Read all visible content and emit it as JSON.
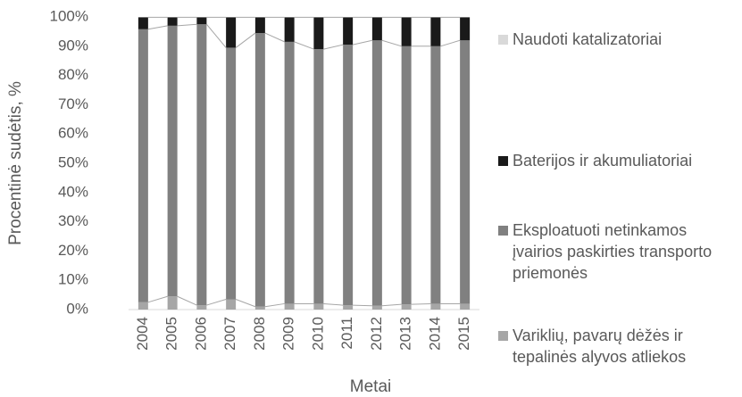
{
  "chart_data": {
    "type": "stacked_bar_100",
    "ylabel": "Procentinė sudėtis, %",
    "xlabel": "Metai",
    "categories": [
      "2004",
      "2005",
      "2006",
      "2007",
      "2008",
      "2009",
      "2010",
      "2011",
      "2012",
      "2013",
      "2014",
      "2015"
    ],
    "series": [
      {
        "name": "Variklių, pavarų dėžės ir tepalinės alyvos atliekos",
        "color": "#a6a6a6",
        "values": [
          2.5,
          4.5,
          1.5,
          3.5,
          1,
          2,
          2,
          1.5,
          1.3,
          1.8,
          2,
          2
        ]
      },
      {
        "name": "Eksploatuoti netinkamos įvairios paskirties transporto priemonės",
        "color": "#808080",
        "values": [
          93.3,
          92.5,
          96,
          86,
          93.5,
          89.5,
          87,
          89,
          90.7,
          88.2,
          88,
          90
        ]
      },
      {
        "name": "Baterijos ir akumuliatoriai",
        "color": "#1a1a1a",
        "values": [
          4.1,
          2.9,
          2.4,
          10.4,
          5.4,
          8.4,
          10.9,
          9.4,
          7.9,
          9.9,
          9.9,
          7.9
        ]
      },
      {
        "name": "Naudoti katalizatoriai",
        "color": "#d9d9d9",
        "values": [
          0.1,
          0.1,
          0.1,
          0.1,
          0.1,
          0.1,
          0.1,
          0.1,
          0.1,
          0.1,
          0.1,
          0.1
        ]
      }
    ],
    "ylim": [
      0,
      100
    ],
    "yticks": [
      {
        "value": 0,
        "label": "0%"
      },
      {
        "value": 10,
        "label": "10%"
      },
      {
        "value": 20,
        "label": "20%"
      },
      {
        "value": 30,
        "label": "30%"
      },
      {
        "value": 40,
        "label": "40%"
      },
      {
        "value": 50,
        "label": "50%"
      },
      {
        "value": 60,
        "label": "60%"
      },
      {
        "value": 70,
        "label": "70%"
      },
      {
        "value": 80,
        "label": "80%"
      },
      {
        "value": 90,
        "label": "90%"
      },
      {
        "value": 100,
        "label": "100%"
      }
    ],
    "grid": false,
    "legend": "right"
  }
}
